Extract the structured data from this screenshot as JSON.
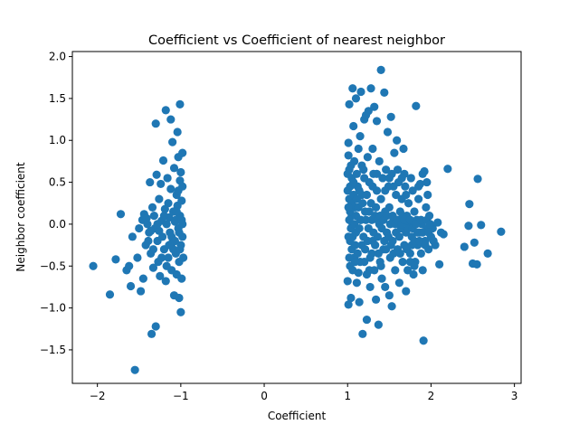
{
  "chart_data": {
    "type": "scatter",
    "title": "Coefficient vs Coefficient of nearest neighbor",
    "xlabel": "Coefficient",
    "ylabel": "Neighbor coefficient",
    "xlim": [
      -2.3,
      3.08
    ],
    "ylim": [
      -1.9,
      2.06
    ],
    "xticks": [
      -2,
      -1,
      0,
      1,
      2,
      3
    ],
    "xtick_labels": [
      "−2",
      "−1",
      "0",
      "1",
      "2",
      "3"
    ],
    "yticks": [
      -1.5,
      -1.0,
      -0.5,
      0.0,
      0.5,
      1.0,
      1.5,
      2.0
    ],
    "ytick_labels": [
      "−1.5",
      "−1.0",
      "−0.5",
      "0.0",
      "0.5",
      "1.0",
      "1.5",
      "2.0"
    ],
    "grid": false,
    "marker_color": "#1f77b4",
    "points": [
      [
        -2.05,
        -0.5
      ],
      [
        -1.85,
        -0.84
      ],
      [
        -1.78,
        -0.42
      ],
      [
        -1.72,
        0.12
      ],
      [
        -1.65,
        -0.55
      ],
      [
        -1.62,
        -0.5
      ],
      [
        -1.6,
        -0.74
      ],
      [
        -1.58,
        -0.15
      ],
      [
        -1.55,
        -1.74
      ],
      [
        -1.52,
        -0.4
      ],
      [
        -1.5,
        -0.05
      ],
      [
        -1.48,
        -0.8
      ],
      [
        -1.46,
        0.05
      ],
      [
        -1.45,
        -0.65
      ],
      [
        -1.44,
        0.12
      ],
      [
        -1.42,
        -0.25
      ],
      [
        -1.4,
        0.0
      ],
      [
        -1.38,
        -0.1
      ],
      [
        -1.37,
        0.5
      ],
      [
        -1.36,
        -0.35
      ],
      [
        -1.35,
        -1.31
      ],
      [
        -1.34,
        0.2
      ],
      [
        -1.33,
        -0.52
      ],
      [
        -1.32,
        0.1
      ],
      [
        -1.31,
        -0.05
      ],
      [
        -1.3,
        1.2
      ],
      [
        -1.3,
        -1.22
      ],
      [
        -1.29,
        0.59
      ],
      [
        -1.28,
        -0.2
      ],
      [
        -1.27,
        -0.45
      ],
      [
        -1.26,
        0.3
      ],
      [
        -1.25,
        -0.62
      ],
      [
        -1.24,
        0.48
      ],
      [
        -1.23,
        0.04
      ],
      [
        -1.22,
        -0.15
      ],
      [
        -1.21,
        0.76
      ],
      [
        -1.2,
        -0.3
      ],
      [
        -1.19,
        0.18
      ],
      [
        -1.18,
        -0.68
      ],
      [
        -1.18,
        1.36
      ],
      [
        -1.17,
        0.0
      ],
      [
        -1.16,
        0.55
      ],
      [
        -1.15,
        -0.4
      ],
      [
        -1.14,
        0.08
      ],
      [
        -1.13,
        -0.1
      ],
      [
        -1.12,
        1.25
      ],
      [
        -1.12,
        0.42
      ],
      [
        -1.11,
        -0.55
      ],
      [
        -1.1,
        0.98
      ],
      [
        -1.1,
        -0.22
      ],
      [
        -1.09,
        0.15
      ],
      [
        -1.08,
        0.67
      ],
      [
        -1.08,
        -0.85
      ],
      [
        -1.07,
        0.03
      ],
      [
        -1.06,
        -0.35
      ],
      [
        -1.05,
        0.35
      ],
      [
        -1.05,
        -0.6
      ],
      [
        -1.04,
        1.1
      ],
      [
        -1.04,
        0.22
      ],
      [
        -1.03,
        -0.05
      ],
      [
        -1.03,
        0.8
      ],
      [
        -1.02,
        -0.88
      ],
      [
        -1.02,
        -0.45
      ],
      [
        -1.01,
        1.43
      ],
      [
        -1.01,
        0.52
      ],
      [
        -1.01,
        0.1
      ],
      [
        -1.0,
        -1.05
      ],
      [
        -1.0,
        -0.25
      ],
      [
        -1.0,
        0.62
      ],
      [
        -0.99,
        0.28
      ],
      [
        -0.99,
        -0.65
      ],
      [
        -0.98,
        0.85
      ],
      [
        -0.98,
        -0.15
      ],
      [
        -0.98,
        0.45
      ],
      [
        -0.98,
        0.0
      ],
      [
        -0.97,
        -0.4
      ],
      [
        -1.36,
        -0.08
      ],
      [
        -1.41,
        0.07
      ],
      [
        -1.26,
        -0.08
      ],
      [
        -1.15,
        0.25
      ],
      [
        -1.09,
        -0.3
      ],
      [
        -1.05,
        0.15
      ],
      [
        -1.2,
        0.1
      ],
      [
        -1.28,
        0.0
      ],
      [
        -1.33,
        -0.3
      ],
      [
        -1.17,
        -0.5
      ],
      [
        -1.11,
        -0.15
      ],
      [
        -1.02,
        -0.1
      ],
      [
        -1.06,
        0.05
      ],
      [
        -1.23,
        -0.4
      ],
      [
        -1.39,
        -0.2
      ],
      [
        -1.14,
        -0.25
      ],
      [
        -1.07,
        -0.2
      ],
      [
        -1.01,
        -0.3
      ],
      [
        -0.99,
        0.05
      ],
      [
        -1.03,
        0.4
      ],
      [
        1.0,
        0.6
      ],
      [
        1.0,
        0.4
      ],
      [
        1.0,
        -0.68
      ],
      [
        1.01,
        0.97
      ],
      [
        1.01,
        0.82
      ],
      [
        1.01,
        -0.96
      ],
      [
        1.02,
        0.65
      ],
      [
        1.02,
        0.3
      ],
      [
        1.02,
        1.43
      ],
      [
        1.03,
        -0.2
      ],
      [
        1.03,
        -0.5
      ],
      [
        1.04,
        -0.88
      ],
      [
        1.05,
        0.55
      ],
      [
        1.05,
        0.1
      ],
      [
        1.05,
        -0.3
      ],
      [
        1.06,
        1.62
      ],
      [
        1.06,
        0.0
      ],
      [
        1.07,
        1.17
      ],
      [
        1.08,
        0.75
      ],
      [
        1.08,
        -0.4
      ],
      [
        1.09,
        0.2
      ],
      [
        1.1,
        1.5
      ],
      [
        1.1,
        -0.1
      ],
      [
        1.11,
        -0.7
      ],
      [
        1.12,
        0.45
      ],
      [
        1.13,
        0.9
      ],
      [
        1.13,
        -0.58
      ],
      [
        1.14,
        -0.93
      ],
      [
        1.15,
        1.05
      ],
      [
        1.15,
        0.05
      ],
      [
        1.16,
        1.58
      ],
      [
        1.17,
        -0.25
      ],
      [
        1.17,
        0.35
      ],
      [
        1.18,
        -1.31
      ],
      [
        1.19,
        0.65
      ],
      [
        1.2,
        1.25
      ],
      [
        1.2,
        -0.45
      ],
      [
        1.21,
        0.15
      ],
      [
        1.22,
        1.3
      ],
      [
        1.23,
        -0.6
      ],
      [
        1.23,
        -1.14
      ],
      [
        1.24,
        0.8
      ],
      [
        1.25,
        1.35
      ],
      [
        1.25,
        -0.05
      ],
      [
        1.26,
        0.5
      ],
      [
        1.27,
        -0.75
      ],
      [
        1.28,
        1.62
      ],
      [
        1.28,
        0.25
      ],
      [
        1.29,
        -0.35
      ],
      [
        1.3,
        0.9
      ],
      [
        1.3,
        -0.2
      ],
      [
        1.31,
        0.6
      ],
      [
        1.32,
        1.4
      ],
      [
        1.32,
        -0.55
      ],
      [
        1.33,
        0.1
      ],
      [
        1.34,
        -0.9
      ],
      [
        1.35,
        1.23
      ],
      [
        1.35,
        0.4
      ],
      [
        1.36,
        -0.15
      ],
      [
        1.37,
        -1.2
      ],
      [
        1.38,
        0.75
      ],
      [
        1.38,
        0.0
      ],
      [
        1.39,
        -0.45
      ],
      [
        1.4,
        1.84
      ],
      [
        1.4,
        0.3
      ],
      [
        1.41,
        -0.65
      ],
      [
        1.42,
        0.55
      ],
      [
        1.43,
        -0.3
      ],
      [
        1.44,
        1.57
      ],
      [
        1.45,
        0.15
      ],
      [
        1.45,
        -0.75
      ],
      [
        1.46,
        0.65
      ],
      [
        1.47,
        -0.1
      ],
      [
        1.48,
        1.1
      ],
      [
        1.49,
        0.45
      ],
      [
        1.5,
        -0.85
      ],
      [
        1.5,
        0.2
      ],
      [
        1.51,
        -0.4
      ],
      [
        1.52,
        1.28
      ],
      [
        1.53,
        0.6
      ],
      [
        1.53,
        -0.98
      ],
      [
        1.54,
        -0.2
      ],
      [
        1.55,
        0.05
      ],
      [
        1.56,
        0.85
      ],
      [
        1.57,
        -0.55
      ],
      [
        1.58,
        0.35
      ],
      [
        1.59,
        1.0
      ],
      [
        1.6,
        -0.3
      ],
      [
        1.61,
        0.5
      ],
      [
        1.62,
        -0.7
      ],
      [
        1.63,
        0.15
      ],
      [
        1.64,
        -0.05
      ],
      [
        1.65,
        0.3
      ],
      [
        1.66,
        -0.45
      ],
      [
        1.67,
        0.9
      ],
      [
        1.68,
        0.6
      ],
      [
        1.68,
        -0.25
      ],
      [
        1.69,
        0.45
      ],
      [
        1.7,
        -0.8
      ],
      [
        1.71,
        0.1
      ],
      [
        1.72,
        -0.55
      ],
      [
        1.73,
        0.25
      ],
      [
        1.74,
        0.0
      ],
      [
        1.75,
        -0.35
      ],
      [
        1.76,
        0.55
      ],
      [
        1.77,
        -0.15
      ],
      [
        1.78,
        0.4
      ],
      [
        1.79,
        -0.6
      ],
      [
        1.8,
        0.15
      ],
      [
        1.81,
        -0.45
      ],
      [
        1.82,
        1.41
      ],
      [
        1.83,
        0.05
      ],
      [
        1.84,
        -0.25
      ],
      [
        1.85,
        0.3
      ],
      [
        1.86,
        -0.1
      ],
      [
        1.87,
        0.48
      ],
      [
        1.88,
        -0.35
      ],
      [
        1.89,
        0.0
      ],
      [
        1.9,
        -0.55
      ],
      [
        1.91,
        -1.39
      ],
      [
        1.92,
        0.63
      ],
      [
        1.93,
        -0.2
      ],
      [
        1.94,
        0.2
      ],
      [
        1.95,
        -0.05
      ],
      [
        1.96,
        0.35
      ],
      [
        1.97,
        -0.3
      ],
      [
        1.98,
        0.1
      ],
      [
        2.0,
        -0.15
      ],
      [
        2.02,
        -0.05
      ],
      [
        2.05,
        -0.25
      ],
      [
        2.08,
        0.02
      ],
      [
        2.1,
        -0.48
      ],
      [
        2.12,
        -0.1
      ],
      [
        2.15,
        -0.12
      ],
      [
        2.2,
        0.66
      ],
      [
        2.4,
        -0.27
      ],
      [
        2.45,
        -0.02
      ],
      [
        2.46,
        0.24
      ],
      [
        2.5,
        -0.47
      ],
      [
        2.52,
        -0.22
      ],
      [
        2.55,
        -0.48
      ],
      [
        2.56,
        0.54
      ],
      [
        2.6,
        -0.01
      ],
      [
        2.68,
        -0.35
      ],
      [
        2.84,
        -0.09
      ],
      [
        1.02,
        0.05
      ],
      [
        1.03,
        0.15
      ],
      [
        1.04,
        -0.05
      ],
      [
        1.05,
        0.25
      ],
      [
        1.06,
        -0.15
      ],
      [
        1.07,
        0.35
      ],
      [
        1.08,
        0.0
      ],
      [
        1.09,
        -0.25
      ],
      [
        1.1,
        0.1
      ],
      [
        1.11,
        0.3
      ],
      [
        1.12,
        -0.35
      ],
      [
        1.13,
        0.2
      ],
      [
        1.14,
        -0.05
      ],
      [
        1.15,
        -0.45
      ],
      [
        1.16,
        0.05
      ],
      [
        1.18,
        0.25
      ],
      [
        1.19,
        -0.15
      ],
      [
        1.21,
        -0.3
      ],
      [
        1.22,
        0.05
      ],
      [
        1.24,
        -0.2
      ],
      [
        1.26,
        0.15
      ],
      [
        1.27,
        -0.4
      ],
      [
        1.29,
        0.05
      ],
      [
        1.31,
        -0.1
      ],
      [
        1.33,
        -0.25
      ],
      [
        1.34,
        0.2
      ],
      [
        1.36,
        0.05
      ],
      [
        1.37,
        -0.35
      ],
      [
        1.39,
        0.1
      ],
      [
        1.41,
        -0.05
      ],
      [
        1.43,
        0.05
      ],
      [
        1.44,
        -0.2
      ],
      [
        1.46,
        -0.3
      ],
      [
        1.47,
        0.1
      ],
      [
        1.49,
        -0.15
      ],
      [
        1.51,
        0.0
      ],
      [
        1.52,
        -0.25
      ],
      [
        1.54,
        0.1
      ],
      [
        1.55,
        -0.35
      ],
      [
        1.57,
        0.0
      ],
      [
        1.58,
        -0.1
      ],
      [
        1.6,
        0.05
      ],
      [
        1.62,
        -0.15
      ],
      [
        1.63,
        -0.35
      ],
      [
        1.65,
        0.0
      ],
      [
        1.66,
        0.1
      ],
      [
        1.68,
        0.05
      ],
      [
        1.7,
        -0.1
      ],
      [
        1.71,
        -0.3
      ],
      [
        1.73,
        -0.05
      ],
      [
        1.75,
        0.05
      ],
      [
        1.77,
        -0.25
      ],
      [
        1.78,
        -0.05
      ],
      [
        1.8,
        -0.2
      ],
      [
        1.82,
        0.0
      ],
      [
        1.84,
        -0.1
      ],
      [
        1.86,
        -0.2
      ],
      [
        1.88,
        0.05
      ],
      [
        1.9,
        -0.1
      ],
      [
        1.93,
        -0.25
      ],
      [
        1.95,
        0.05
      ],
      [
        1.97,
        -0.1
      ],
      [
        1.99,
        0.0
      ],
      [
        2.03,
        -0.2
      ],
      [
        1.01,
        0.2
      ],
      [
        1.01,
        -0.15
      ],
      [
        1.02,
        -0.4
      ],
      [
        1.03,
        0.45
      ],
      [
        1.04,
        0.7
      ],
      [
        1.06,
        -0.55
      ],
      [
        1.07,
        0.5
      ],
      [
        1.09,
        -0.45
      ],
      [
        1.11,
        0.6
      ],
      [
        1.14,
        0.4
      ],
      [
        1.17,
        0.7
      ],
      [
        1.2,
        0.55
      ],
      [
        1.23,
        0.35
      ],
      [
        1.26,
        -0.55
      ],
      [
        1.3,
        0.45
      ],
      [
        1.35,
        0.6
      ],
      [
        1.4,
        -0.5
      ],
      [
        1.45,
        0.4
      ],
      [
        1.5,
        0.55
      ],
      [
        1.55,
        0.45
      ],
      [
        1.6,
        0.65
      ],
      [
        1.65,
        0.55
      ],
      [
        1.7,
        0.35
      ],
      [
        1.75,
        -0.45
      ],
      [
        1.8,
        -0.5
      ],
      [
        1.85,
        0.45
      ],
      [
        1.9,
        0.6
      ],
      [
        1.95,
        0.5
      ]
    ]
  }
}
